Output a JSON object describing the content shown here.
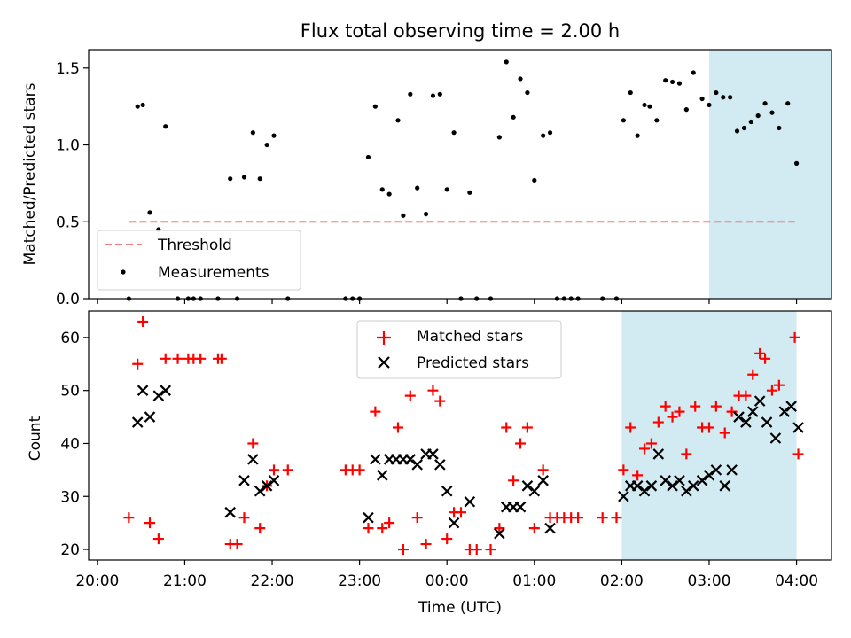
{
  "chart_data": [
    {
      "type": "scatter",
      "title": "Flux total observing time = 2.00 h",
      "ylabel": "Matched/Predicted stars",
      "xlabel": "",
      "xlim": [
        -0.1,
        8.4
      ],
      "ylim": [
        0,
        1.62
      ],
      "yticks": [
        0,
        0.5,
        1.0,
        1.5
      ],
      "ytick_labels": [
        "0.0",
        "0.5",
        "1.0",
        "1.5"
      ],
      "grid": false,
      "legend": "lower-left",
      "highlight_span": [
        7.0,
        9.0
      ],
      "highlight_color": "#add8e6",
      "threshold": {
        "name": "Threshold",
        "y": 0.5,
        "x": [
          0.36,
          7.98
        ],
        "color": "#f08080",
        "style": "dashed"
      },
      "series": [
        {
          "name": "Measurements",
          "color": "#000000",
          "marker": "dot",
          "points": [
            [
              0.36,
              0.0
            ],
            [
              0.46,
              1.25
            ],
            [
              0.52,
              1.26
            ],
            [
              0.6,
              0.56
            ],
            [
              0.7,
              0.45
            ],
            [
              0.78,
              1.12
            ],
            [
              0.92,
              0.0
            ],
            [
              1.04,
              0.0
            ],
            [
              1.1,
              0.0
            ],
            [
              1.18,
              0.0
            ],
            [
              1.38,
              0.0
            ],
            [
              1.52,
              0.78
            ],
            [
              1.6,
              0.0
            ],
            [
              1.68,
              0.79
            ],
            [
              1.78,
              1.08
            ],
            [
              1.86,
              0.78
            ],
            [
              1.94,
              1.0
            ],
            [
              2.02,
              1.06
            ],
            [
              2.18,
              0.0
            ],
            [
              2.84,
              0.0
            ],
            [
              2.92,
              0.0
            ],
            [
              3.0,
              0.0
            ],
            [
              3.1,
              0.92
            ],
            [
              3.18,
              1.25
            ],
            [
              3.26,
              0.71
            ],
            [
              3.34,
              0.68
            ],
            [
              3.44,
              1.16
            ],
            [
              3.5,
              0.54
            ],
            [
              3.58,
              1.33
            ],
            [
              3.66,
              0.72
            ],
            [
              3.76,
              0.55
            ],
            [
              3.84,
              1.32
            ],
            [
              3.92,
              1.33
            ],
            [
              4.0,
              0.71
            ],
            [
              4.08,
              1.08
            ],
            [
              4.16,
              0.0
            ],
            [
              4.26,
              0.69
            ],
            [
              4.34,
              0.0
            ],
            [
              4.5,
              0.0
            ],
            [
              4.6,
              1.05
            ],
            [
              4.68,
              1.54
            ],
            [
              4.76,
              1.18
            ],
            [
              4.84,
              1.43
            ],
            [
              4.92,
              1.34
            ],
            [
              5.0,
              0.77
            ],
            [
              5.1,
              1.06
            ],
            [
              5.18,
              1.08
            ],
            [
              5.26,
              0.0
            ],
            [
              5.34,
              0.0
            ],
            [
              5.42,
              0.0
            ],
            [
              5.5,
              0.0
            ],
            [
              5.78,
              0.0
            ],
            [
              5.94,
              0.0
            ],
            [
              6.02,
              1.16
            ],
            [
              6.1,
              1.34
            ],
            [
              6.18,
              1.06
            ],
            [
              6.26,
              1.26
            ],
            [
              6.32,
              1.25
            ],
            [
              6.4,
              1.16
            ],
            [
              6.5,
              1.42
            ],
            [
              6.58,
              1.41
            ],
            [
              6.66,
              1.4
            ],
            [
              6.74,
              1.23
            ],
            [
              6.82,
              1.47
            ],
            [
              6.92,
              1.3
            ],
            [
              7.0,
              1.26
            ],
            [
              7.08,
              1.34
            ],
            [
              7.16,
              1.31
            ],
            [
              7.24,
              1.31
            ],
            [
              7.32,
              1.09
            ],
            [
              7.4,
              1.11
            ],
            [
              7.48,
              1.15
            ],
            [
              7.56,
              1.19
            ],
            [
              7.64,
              1.27
            ],
            [
              7.72,
              1.21
            ],
            [
              7.8,
              1.11
            ],
            [
              7.9,
              1.27
            ],
            [
              8.0,
              0.88
            ]
          ]
        }
      ]
    },
    {
      "type": "scatter",
      "title": "",
      "ylabel": "Count",
      "xlabel": "Time (UTC)",
      "xlim": [
        -0.1,
        8.4
      ],
      "ylim": [
        18,
        65
      ],
      "xticks": [
        0,
        1,
        2,
        3,
        4,
        5,
        6,
        7,
        8
      ],
      "xtick_labels": [
        "20:00",
        "21:00",
        "22:00",
        "23:00",
        "00:00",
        "01:00",
        "02:00",
        "03:00",
        "04:00"
      ],
      "yticks": [
        20,
        30,
        40,
        50,
        60
      ],
      "ytick_labels": [
        "20",
        "30",
        "40",
        "50",
        "60"
      ],
      "grid": false,
      "legend": "upper-center",
      "highlight_span": [
        6.0,
        8.0
      ],
      "highlight_color": "#add8e6",
      "series": [
        {
          "name": "Matched stars",
          "color": "#ff0000",
          "marker": "plus",
          "points": [
            [
              0.36,
              26
            ],
            [
              0.46,
              55
            ],
            [
              0.52,
              63
            ],
            [
              0.6,
              25
            ],
            [
              0.7,
              22
            ],
            [
              0.78,
              56
            ],
            [
              0.92,
              56
            ],
            [
              1.04,
              56
            ],
            [
              1.1,
              56
            ],
            [
              1.18,
              56
            ],
            [
              1.38,
              56
            ],
            [
              1.42,
              56
            ],
            [
              1.52,
              21
            ],
            [
              1.6,
              21
            ],
            [
              1.68,
              26
            ],
            [
              1.78,
              40
            ],
            [
              1.86,
              24
            ],
            [
              1.94,
              32
            ],
            [
              2.02,
              35
            ],
            [
              2.18,
              35
            ],
            [
              2.84,
              35
            ],
            [
              2.92,
              35
            ],
            [
              3.0,
              35
            ],
            [
              3.1,
              24
            ],
            [
              3.18,
              46
            ],
            [
              3.26,
              24
            ],
            [
              3.34,
              25
            ],
            [
              3.44,
              43
            ],
            [
              3.5,
              20
            ],
            [
              3.58,
              49
            ],
            [
              3.66,
              26
            ],
            [
              3.76,
              21
            ],
            [
              3.84,
              50
            ],
            [
              3.92,
              48
            ],
            [
              4.0,
              22
            ],
            [
              4.08,
              27
            ],
            [
              4.16,
              27
            ],
            [
              4.26,
              20
            ],
            [
              4.34,
              20
            ],
            [
              4.5,
              20
            ],
            [
              4.6,
              24
            ],
            [
              4.68,
              43
            ],
            [
              4.76,
              33
            ],
            [
              4.84,
              40
            ],
            [
              4.92,
              43
            ],
            [
              5.0,
              24
            ],
            [
              5.1,
              35
            ],
            [
              5.18,
              26
            ],
            [
              5.26,
              26
            ],
            [
              5.34,
              26
            ],
            [
              5.42,
              26
            ],
            [
              5.5,
              26
            ],
            [
              5.78,
              26
            ],
            [
              5.94,
              26
            ],
            [
              6.02,
              35
            ],
            [
              6.1,
              43
            ],
            [
              6.18,
              34
            ],
            [
              6.26,
              39
            ],
            [
              6.34,
              40
            ],
            [
              6.42,
              44
            ],
            [
              6.5,
              47
            ],
            [
              6.58,
              45
            ],
            [
              6.66,
              46
            ],
            [
              6.74,
              38
            ],
            [
              6.84,
              47
            ],
            [
              6.92,
              43
            ],
            [
              7.0,
              43
            ],
            [
              7.08,
              47
            ],
            [
              7.18,
              42
            ],
            [
              7.26,
              46
            ],
            [
              7.34,
              49
            ],
            [
              7.42,
              49
            ],
            [
              7.5,
              53
            ],
            [
              7.58,
              57
            ],
            [
              7.64,
              56
            ],
            [
              7.72,
              50
            ],
            [
              7.8,
              51
            ],
            [
              7.98,
              60
            ],
            [
              8.02,
              38
            ]
          ]
        },
        {
          "name": "Predicted stars",
          "color": "#000000",
          "marker": "x",
          "points": [
            [
              0.46,
              44
            ],
            [
              0.52,
              50
            ],
            [
              0.6,
              45
            ],
            [
              0.7,
              49
            ],
            [
              0.78,
              50
            ],
            [
              1.52,
              27
            ],
            [
              1.68,
              33
            ],
            [
              1.78,
              37
            ],
            [
              1.86,
              31
            ],
            [
              1.94,
              32
            ],
            [
              2.02,
              33
            ],
            [
              3.1,
              26
            ],
            [
              3.18,
              37
            ],
            [
              3.26,
              34
            ],
            [
              3.34,
              37
            ],
            [
              3.42,
              37
            ],
            [
              3.5,
              37
            ],
            [
              3.58,
              37
            ],
            [
              3.66,
              36
            ],
            [
              3.76,
              38
            ],
            [
              3.84,
              38
            ],
            [
              3.92,
              36
            ],
            [
              4.0,
              31
            ],
            [
              4.08,
              25
            ],
            [
              4.26,
              29
            ],
            [
              4.6,
              23
            ],
            [
              4.68,
              28
            ],
            [
              4.76,
              28
            ],
            [
              4.84,
              28
            ],
            [
              4.92,
              32
            ],
            [
              5.0,
              31
            ],
            [
              5.1,
              33
            ],
            [
              5.18,
              24
            ],
            [
              6.02,
              30
            ],
            [
              6.1,
              32
            ],
            [
              6.18,
              32
            ],
            [
              6.26,
              31
            ],
            [
              6.34,
              32
            ],
            [
              6.42,
              38
            ],
            [
              6.5,
              33
            ],
            [
              6.58,
              32
            ],
            [
              6.66,
              33
            ],
            [
              6.74,
              31
            ],
            [
              6.82,
              32
            ],
            [
              6.92,
              33
            ],
            [
              7.0,
              34
            ],
            [
              7.08,
              35
            ],
            [
              7.18,
              32
            ],
            [
              7.26,
              35
            ],
            [
              7.34,
              45
            ],
            [
              7.42,
              44
            ],
            [
              7.5,
              46
            ],
            [
              7.58,
              48
            ],
            [
              7.66,
              44
            ],
            [
              7.76,
              41
            ],
            [
              7.86,
              46
            ],
            [
              7.94,
              47
            ],
            [
              8.02,
              43
            ]
          ]
        }
      ]
    }
  ]
}
